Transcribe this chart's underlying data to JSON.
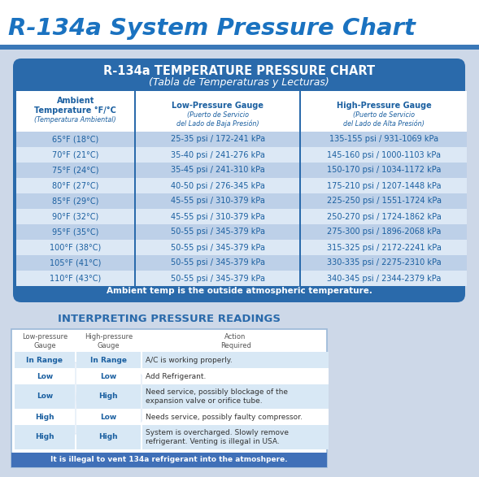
{
  "title": "R-134a System Pressure Chart",
  "title_color": "#1a72c0",
  "bg_color": "#cdd8e8",
  "top_bg": "#ffffff",
  "blue_bar_color": "#3a78b8",
  "table1_title": "R-134a TEMPERATURE PRESSURE CHART",
  "table1_subtitle": "(Tabla de Temperaturas y Lecturas)",
  "table1_bg": "#2a6aab",
  "table1_footer": "Ambient temp is the outside atmospheric temperature.",
  "col_headers_bold": [
    "Ambient\nTemperature °F/°C",
    "Low-Pressure Gauge",
    "High-Pressure Gauge"
  ],
  "col_headers_italic": [
    "(Temperatura Ambiental)",
    "(Puerto de Servicio\ndel Lado de Baja Presión)",
    "(Puerto de Servicio\ndel Lado de Alta Presión)"
  ],
  "rows": [
    [
      "65°F (18°C)",
      "25-35 psi / 172-241 kPa",
      "135-155 psi / 931-1069 kPa"
    ],
    [
      "70°F (21°C)",
      "35-40 psi / 241-276 kPa",
      "145-160 psi / 1000-1103 kPa"
    ],
    [
      "75°F (24°C)",
      "35-45 psi / 241-310 kPa",
      "150-170 psi / 1034-1172 kPa"
    ],
    [
      "80°F (27°C)",
      "40-50 psi / 276-345 kPa",
      "175-210 psi / 1207-1448 kPa"
    ],
    [
      "85°F (29°C)",
      "45-55 psi / 310-379 kPa",
      "225-250 psi / 1551-1724 kPa"
    ],
    [
      "90°F (32°C)",
      "45-55 psi / 310-379 kPa",
      "250-270 psi / 1724-1862 kPa"
    ],
    [
      "95°F (35°C)",
      "50-55 psi / 345-379 kPa",
      "275-300 psi / 1896-2068 kPa"
    ],
    [
      "100°F (38°C)",
      "50-55 psi / 345-379 kPa",
      "315-325 psi / 2172-2241 kPa"
    ],
    [
      "105°F (41°C)",
      "50-55 psi / 345-379 kPa",
      "330-335 psi / 2275-2310 kPa"
    ],
    [
      "110°F (43°C)",
      "50-55 psi / 345-379 kPa",
      "340-345 psi / 2344-2379 kPa"
    ]
  ],
  "row_color_shaded": "#bdd0e8",
  "row_color_plain": "#dce8f5",
  "row_text_color": "#1a5fa0",
  "table2_title": "INTERPRETING PRESSURE READINGS",
  "table2_title_color": "#2a6aab",
  "table2_col_headers": [
    "Low-pressure\nGauge",
    "High-pressure\nGauge",
    "Action\nRequired"
  ],
  "table2_rows": [
    [
      "In Range",
      "In Range",
      "A/C is working properly."
    ],
    [
      "Low",
      "Low",
      "Add Refrigerant."
    ],
    [
      "Low",
      "High",
      "Need service, possibly blockage of the\nexpansion valve or orifice tube."
    ],
    [
      "High",
      "Low",
      "Needs service, possibly faulty compressor."
    ],
    [
      "High",
      "High",
      "System is overcharged. Slowly remove\nrefrigerant. Venting is illegal in USA."
    ]
  ],
  "table2_row_colors": [
    "#d8e8f5",
    "#ffffff",
    "#d8e8f5",
    "#ffffff",
    "#d8e8f5"
  ],
  "table2_footer": "It is illegal to vent 134a refrigerant into the atmoshpere.",
  "table2_footer_bg": "#4070b8",
  "table2_border_color": "#9ab8d8",
  "table2_bold_color": "#1a5fa0",
  "table2_action_color": "#333333"
}
